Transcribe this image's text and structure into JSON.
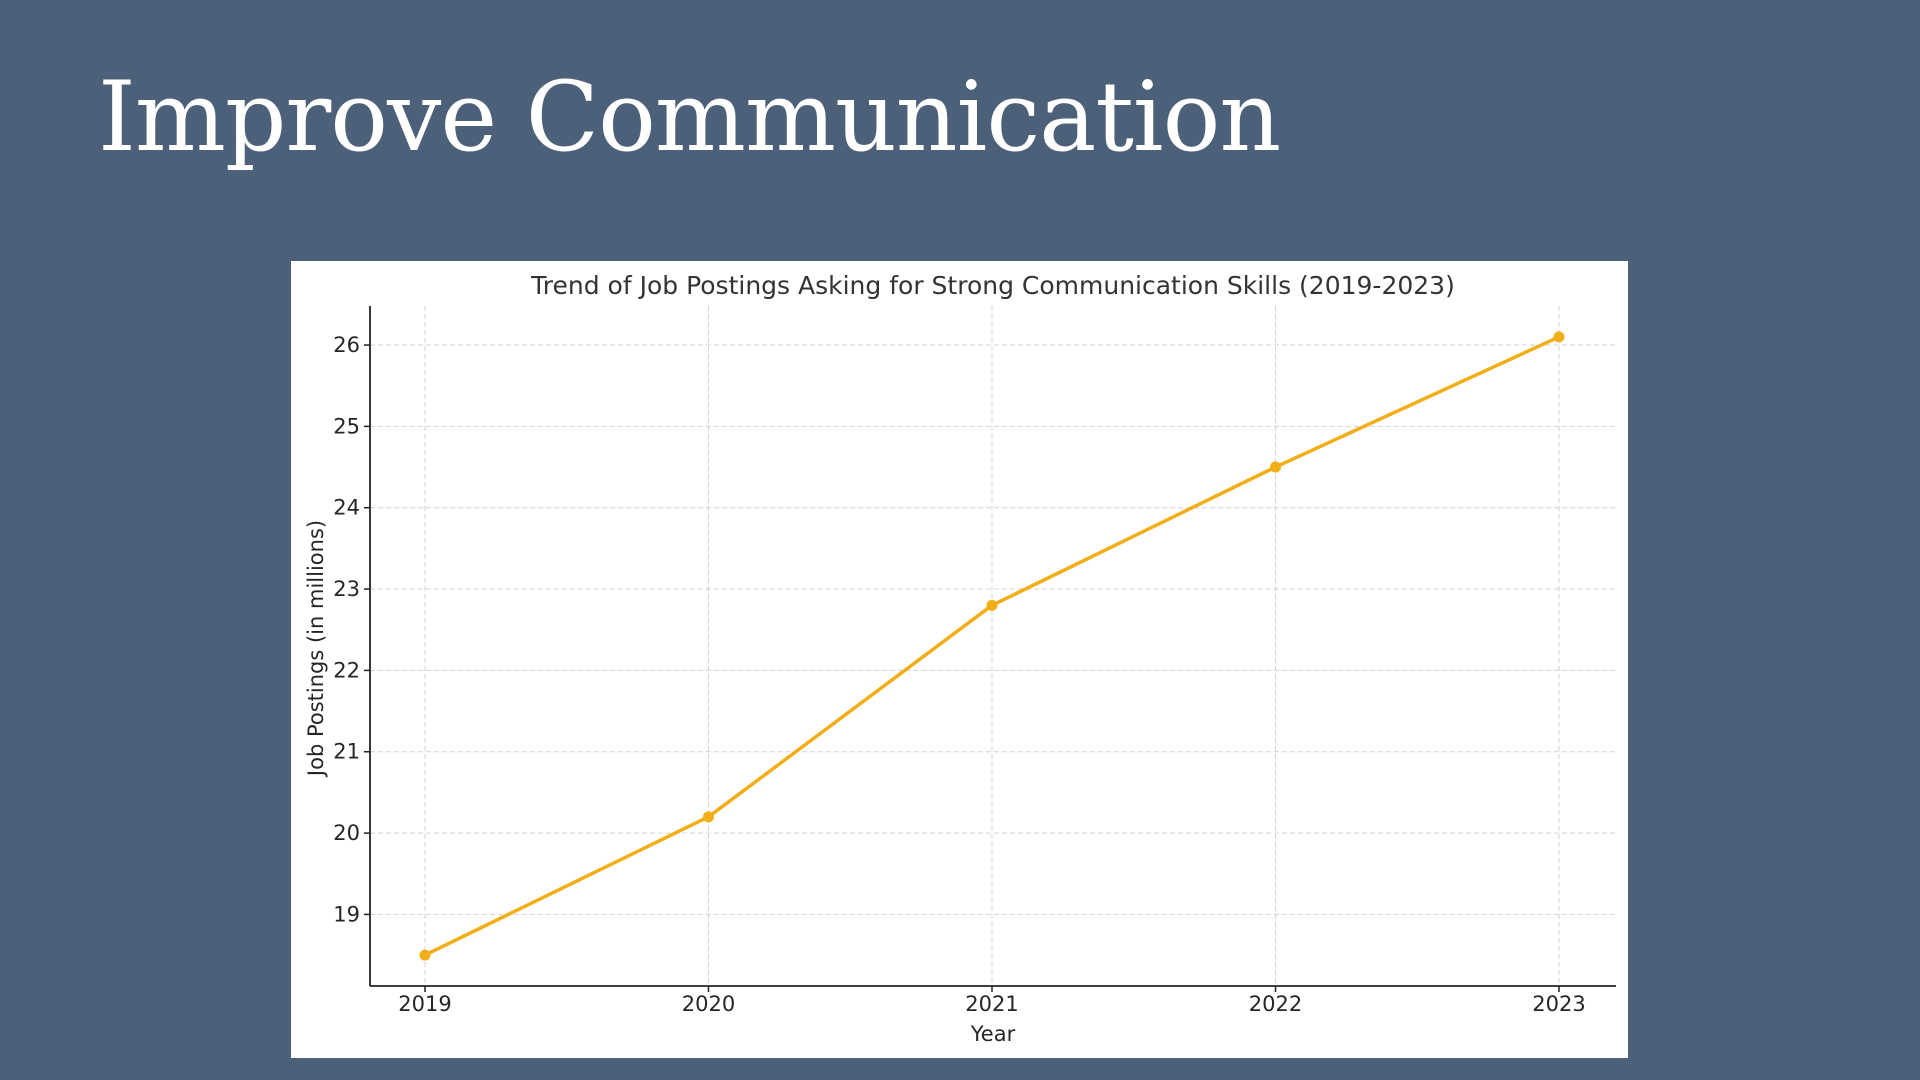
{
  "slide": {
    "title": "Improve Communication"
  },
  "colors": {
    "background": "#4c6079",
    "panel": "#ffffff",
    "line": "#f2ae17",
    "grid": "#d3d3d3",
    "axis": "#222222",
    "text": "#262626"
  },
  "chart_data": {
    "type": "line",
    "title": "Trend of Job Postings Asking for Strong Communication Skills (2019-2023)",
    "xlabel": "Year",
    "ylabel": "Job Postings (in millions)",
    "categories": [
      "2019",
      "2020",
      "2021",
      "2022",
      "2023"
    ],
    "series": [
      {
        "values": [
          18.5,
          20.2,
          22.8,
          24.5,
          26.1
        ],
        "color": "#f2ae17",
        "marker": "circle"
      }
    ],
    "y_ticks": [
      19,
      20,
      21,
      22,
      23,
      24,
      25,
      26
    ],
    "ylim": [
      18.12,
      26.48
    ],
    "grid": true,
    "grid_style": "dashed",
    "legend": "none"
  }
}
